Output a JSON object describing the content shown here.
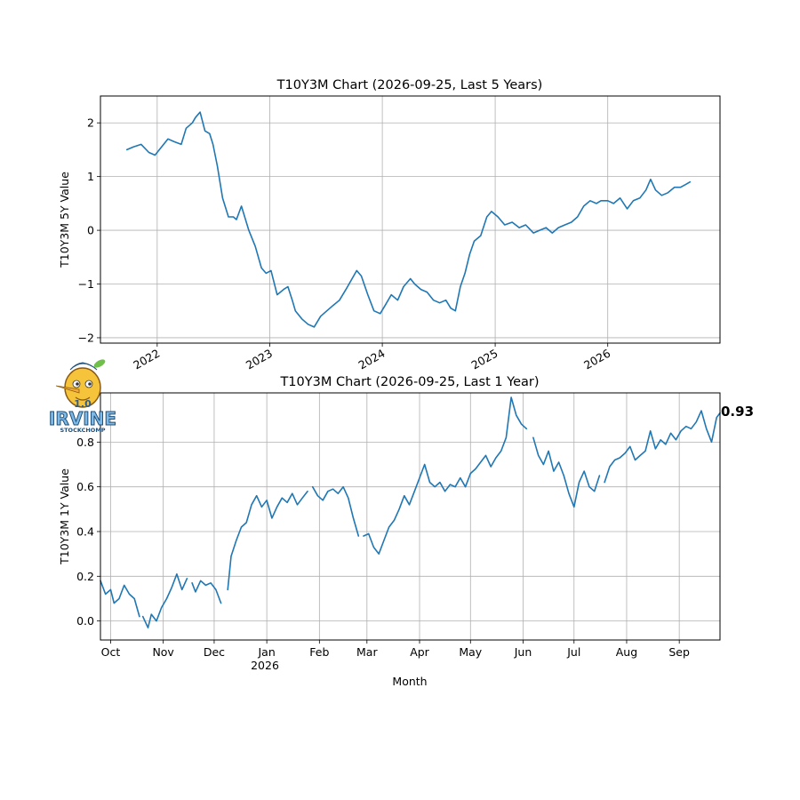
{
  "colors": {
    "series": "#1f77b4",
    "grid": "#b0b0b0"
  },
  "logo": {
    "version": "1.0",
    "brand": "IRVINE",
    "subtitle": "STOCKCHOMP"
  },
  "chart_data": [
    {
      "type": "line",
      "title": "T10Y3M Chart (2026-09-25, Last 5 Years)",
      "xlabel": "",
      "ylabel": "T10Y3M 5Y Value",
      "x_tick_labels": [
        "2022",
        "2023",
        "2024",
        "2025",
        "2026"
      ],
      "x_ticks": [
        "2022-01-01",
        "2023-01-01",
        "2024-01-01",
        "2025-01-01",
        "2026-01-01"
      ],
      "xlim": [
        "2021-07-01",
        "2026-12-31"
      ],
      "y_ticks": [
        -2,
        -1,
        0,
        1,
        2
      ],
      "y_tick_labels": [
        "−2",
        "−1",
        "0",
        "1",
        "2"
      ],
      "ylim": [
        -2.1,
        2.5
      ],
      "grid": true,
      "series": [
        {
          "x": [
            "2021-09-25",
            "2021-10-15",
            "2021-11-10",
            "2021-12-05",
            "2021-12-25",
            "2022-01-15",
            "2022-02-05",
            "2022-02-25",
            "2022-03-20",
            "2022-04-05",
            "2022-04-25",
            "2022-05-05",
            "2022-05-20",
            "2022-06-05",
            "2022-06-20",
            "2022-07-01",
            "2022-07-15",
            "2022-08-01",
            "2022-08-20",
            "2022-09-05",
            "2022-09-15",
            "2022-10-01",
            "2022-10-25",
            "2022-11-15",
            "2022-12-05",
            "2022-12-20",
            "2023-01-05",
            "2023-01-25",
            "2023-02-15",
            "2023-03-01",
            "2023-03-15",
            "2023-03-25",
            "2023-04-15",
            "2023-05-05",
            "2023-05-25",
            "2023-06-15",
            "2023-07-05",
            "2023-07-25",
            "2023-08-15",
            "2023-09-05",
            "2023-09-25",
            "2023-10-10",
            "2023-10-25",
            "2023-11-15",
            "2023-12-05",
            "2023-12-25",
            "2024-01-10",
            "2024-01-30",
            "2024-02-20",
            "2024-03-10",
            "2024-04-01",
            "2024-04-15",
            "2024-05-05",
            "2024-05-25",
            "2024-06-15",
            "2024-07-05",
            "2024-07-25",
            "2024-08-10",
            "2024-08-25",
            "2024-09-10",
            "2024-09-25",
            "2024-10-10",
            "2024-10-25",
            "2024-11-15",
            "2024-12-05",
            "2024-12-20",
            "2025-01-10",
            "2025-02-01",
            "2025-02-25",
            "2025-03-20",
            "2025-04-10",
            "2025-05-05",
            "2025-05-25",
            "2025-06-15",
            "2025-07-05",
            "2025-07-25",
            "2025-08-15",
            "2025-09-05",
            "2025-09-25",
            "2025-10-15",
            "2025-11-05",
            "2025-11-25",
            "2025-12-10",
            "2026-01-01",
            "2026-01-20",
            "2026-02-10",
            "2026-03-05",
            "2026-03-25",
            "2026-04-15",
            "2026-05-05",
            "2026-05-20",
            "2026-06-05",
            "2026-06-25",
            "2026-07-15",
            "2026-08-05",
            "2026-08-25",
            "2026-09-10",
            "2026-09-25"
          ],
          "values": [
            1.5,
            1.55,
            1.6,
            1.45,
            1.4,
            1.55,
            1.7,
            1.65,
            1.6,
            1.9,
            2.0,
            2.1,
            2.2,
            1.85,
            1.8,
            1.6,
            1.2,
            0.6,
            0.25,
            0.25,
            0.2,
            0.45,
            0.0,
            -0.3,
            -0.7,
            -0.8,
            -0.75,
            -1.2,
            -1.1,
            -1.05,
            -1.3,
            -1.5,
            -1.65,
            -1.75,
            -1.8,
            -1.6,
            -1.5,
            -1.4,
            -1.3,
            -1.1,
            -0.9,
            -0.75,
            -0.85,
            -1.2,
            -1.5,
            -1.55,
            -1.4,
            -1.2,
            -1.3,
            -1.05,
            -0.9,
            -1.0,
            -1.1,
            -1.15,
            -1.3,
            -1.35,
            -1.3,
            -1.45,
            -1.5,
            -1.05,
            -0.8,
            -0.45,
            -0.2,
            -0.1,
            0.25,
            0.35,
            0.25,
            0.1,
            0.15,
            0.05,
            0.1,
            -0.05,
            0.0,
            0.05,
            -0.05,
            0.05,
            0.1,
            0.15,
            0.25,
            0.45,
            0.55,
            0.5,
            0.55,
            0.55,
            0.5,
            0.6,
            0.4,
            0.55,
            0.6,
            0.75,
            0.95,
            0.75,
            0.65,
            0.7,
            0.8,
            0.8,
            0.85,
            0.9
          ]
        }
      ]
    },
    {
      "type": "line",
      "title": "T10Y3M Chart (2026-09-25, Last 1 Year)",
      "xlabel": "Month",
      "ylabel": "T10Y3M 1Y Value",
      "x_tick_labels": [
        "Oct",
        "Nov",
        "Dec",
        "Jan",
        "Feb",
        "Mar",
        "Apr",
        "May",
        "Jun",
        "Jul",
        "Aug",
        "Sep"
      ],
      "x_ticks": [
        "2025-10-01",
        "2025-11-01",
        "2025-12-01",
        "2026-01-01",
        "2026-02-01",
        "2026-03-01",
        "2026-04-01",
        "2026-05-01",
        "2026-06-01",
        "2026-07-01",
        "2026-08-01",
        "2026-09-01"
      ],
      "x_year_label": "2026",
      "xlim": [
        "2025-09-25",
        "2026-09-25"
      ],
      "y_ticks": [
        0.0,
        0.2,
        0.4,
        0.6,
        0.8
      ],
      "y_tick_labels": [
        "0.0",
        "0.2",
        "0.4",
        "0.6",
        "0.8"
      ],
      "ylim": [
        -0.085,
        1.02
      ],
      "grid": true,
      "last_value_label": "0.93",
      "series": [
        {
          "segments": [
            {
              "x": [
                "2025-09-25",
                "2025-09-28",
                "2025-10-01",
                "2025-10-03",
                "2025-10-06",
                "2025-10-09",
                "2025-10-12",
                "2025-10-15",
                "2025-10-18"
              ],
              "values": [
                0.18,
                0.12,
                0.14,
                0.08,
                0.1,
                0.16,
                0.12,
                0.1,
                0.02
              ]
            },
            {
              "x": [
                "2025-10-20",
                "2025-10-23",
                "2025-10-25",
                "2025-10-28",
                "2025-10-31",
                "2025-11-03",
                "2025-11-06",
                "2025-11-09",
                "2025-11-12",
                "2025-11-15"
              ],
              "values": [
                0.02,
                -0.03,
                0.03,
                0.0,
                0.06,
                0.1,
                0.15,
                0.21,
                0.14,
                0.19
              ]
            },
            {
              "x": [
                "2025-11-18",
                "2025-11-20",
                "2025-11-23",
                "2025-11-26",
                "2025-11-29",
                "2025-12-02",
                "2025-12-05"
              ],
              "values": [
                0.17,
                0.13,
                0.18,
                0.16,
                0.17,
                0.14,
                0.08
              ]
            },
            {
              "x": [
                "2025-12-09",
                "2025-12-11",
                "2025-12-14",
                "2025-12-17",
                "2025-12-20",
                "2025-12-23",
                "2025-12-26",
                "2025-12-29",
                "2026-01-01",
                "2026-01-04",
                "2026-01-07",
                "2026-01-10",
                "2026-01-13",
                "2026-01-16",
                "2026-01-19",
                "2026-01-22",
                "2026-01-25"
              ],
              "values": [
                0.14,
                0.29,
                0.36,
                0.42,
                0.44,
                0.52,
                0.56,
                0.51,
                0.54,
                0.46,
                0.51,
                0.55,
                0.53,
                0.57,
                0.52,
                0.55,
                0.58
              ]
            },
            {
              "x": [
                "2026-01-28",
                "2026-01-31",
                "2026-02-03",
                "2026-02-06",
                "2026-02-09",
                "2026-02-12",
                "2026-02-15",
                "2026-02-18",
                "2026-02-21",
                "2026-02-24"
              ],
              "values": [
                0.6,
                0.56,
                0.54,
                0.58,
                0.59,
                0.57,
                0.6,
                0.55,
                0.46,
                0.38
              ]
            },
            {
              "x": [
                "2026-02-27",
                "2026-03-02",
                "2026-03-05",
                "2026-03-08",
                "2026-03-11",
                "2026-03-14",
                "2026-03-17",
                "2026-03-20",
                "2026-03-23",
                "2026-03-26",
                "2026-03-29",
                "2026-04-01",
                "2026-04-04",
                "2026-04-07",
                "2026-04-10",
                "2026-04-13",
                "2026-04-16",
                "2026-04-19",
                "2026-04-22",
                "2026-04-25",
                "2026-04-28",
                "2026-05-01",
                "2026-05-04",
                "2026-05-07",
                "2026-05-10",
                "2026-05-13",
                "2026-05-16",
                "2026-05-19",
                "2026-05-22",
                "2026-05-25",
                "2026-05-28",
                "2026-05-31",
                "2026-06-03"
              ],
              "values": [
                0.38,
                0.39,
                0.33,
                0.3,
                0.36,
                0.42,
                0.45,
                0.5,
                0.56,
                0.52,
                0.58,
                0.64,
                0.7,
                0.62,
                0.6,
                0.62,
                0.58,
                0.61,
                0.6,
                0.64,
                0.6,
                0.66,
                0.68,
                0.71,
                0.74,
                0.69,
                0.73,
                0.76,
                0.82,
                1.0,
                0.92,
                0.88,
                0.86
              ]
            },
            {
              "x": [
                "2026-06-07",
                "2026-06-10",
                "2026-06-13",
                "2026-06-16",
                "2026-06-19",
                "2026-06-22",
                "2026-06-25",
                "2026-06-28",
                "2026-07-01",
                "2026-07-04",
                "2026-07-07",
                "2026-07-10",
                "2026-07-13",
                "2026-07-16"
              ],
              "values": [
                0.82,
                0.74,
                0.7,
                0.76,
                0.67,
                0.71,
                0.65,
                0.57,
                0.51,
                0.62,
                0.67,
                0.6,
                0.58,
                0.65
              ]
            },
            {
              "x": [
                "2026-07-19",
                "2026-07-22",
                "2026-07-25",
                "2026-07-28",
                "2026-07-31",
                "2026-08-03",
                "2026-08-06",
                "2026-08-09",
                "2026-08-12",
                "2026-08-15",
                "2026-08-18",
                "2026-08-21",
                "2026-08-24",
                "2026-08-27",
                "2026-08-30",
                "2026-09-02",
                "2026-09-05",
                "2026-09-08",
                "2026-09-11",
                "2026-09-14",
                "2026-09-17",
                "2026-09-20",
                "2026-09-23",
                "2026-09-25"
              ],
              "values": [
                0.62,
                0.69,
                0.72,
                0.73,
                0.75,
                0.78,
                0.72,
                0.74,
                0.76,
                0.85,
                0.77,
                0.81,
                0.79,
                0.84,
                0.81,
                0.85,
                0.87,
                0.86,
                0.89,
                0.94,
                0.86,
                0.8,
                0.91,
                0.93
              ]
            }
          ]
        }
      ]
    }
  ]
}
